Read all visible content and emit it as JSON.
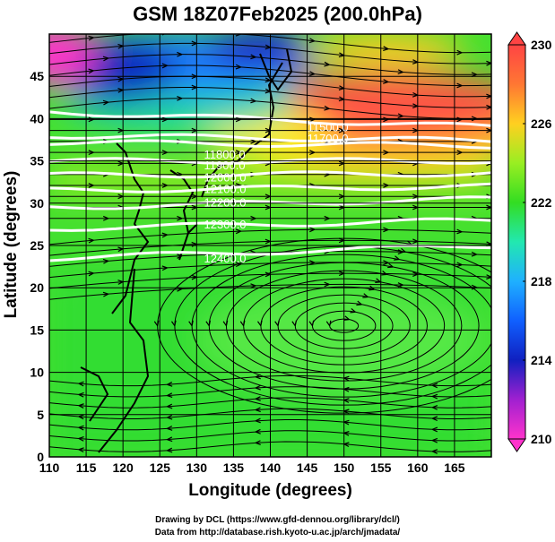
{
  "title": "GSM 18Z07Feb2025 (200.0hPa)",
  "xlabel": "Longitude (degrees)",
  "ylabel": "Latitude  (degrees)",
  "credits": [
    "Drawing by DCL (https://www.gfd-dennou.org/library/dcl/)",
    "Data from http://database.rish.kyoto-u.ac.jp/arch/jmadata/"
  ],
  "map": {
    "lon_range": [
      110,
      170
    ],
    "lat_range": [
      0,
      50
    ],
    "lon_ticks": [
      "110",
      "115",
      "120",
      "125",
      "130",
      "135",
      "140",
      "145",
      "150",
      "155",
      "160",
      "165"
    ],
    "lat_ticks": [
      "0",
      "5",
      "10",
      "15",
      "20",
      "25",
      "30",
      "35",
      "40",
      "45"
    ],
    "colorbar": {
      "range": [
        210,
        230
      ],
      "labels": [
        "210",
        "214",
        "218",
        "222",
        "226",
        "230"
      ],
      "colors": [
        "#ff33cc",
        "#1020c0",
        "#1f9fff",
        "#22e8b0",
        "#33dd22",
        "#ffee22",
        "#ff8822",
        "#ff4444"
      ]
    },
    "contour_labels": [
      "11500.0",
      "11700.0",
      "11800.0",
      "11900.0",
      "12000.0",
      "12100.0",
      "12200.0",
      "12300.0",
      "12400.0"
    ]
  }
}
